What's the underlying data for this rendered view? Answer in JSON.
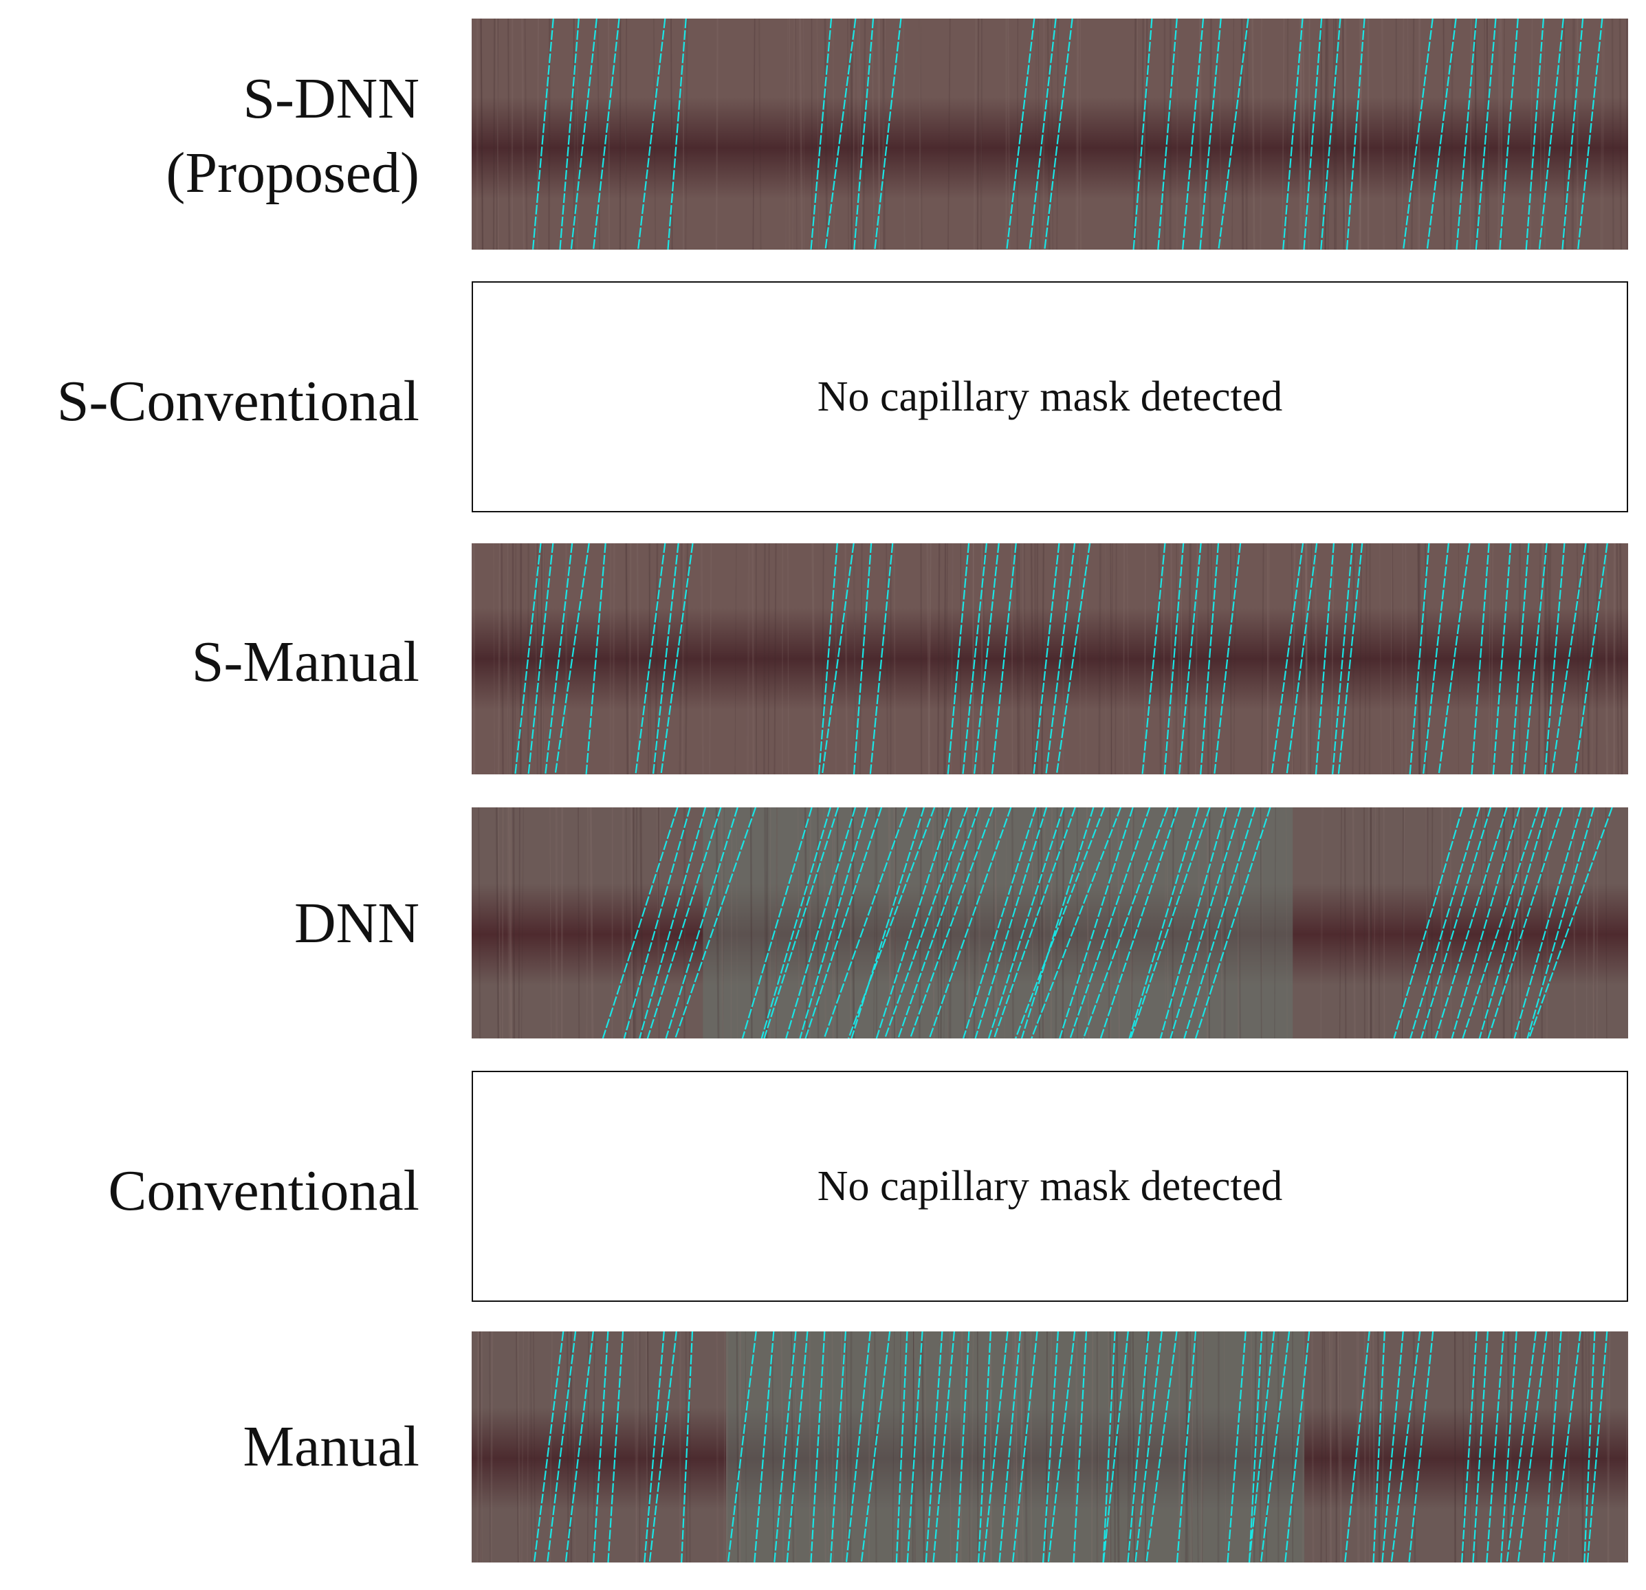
{
  "figure": {
    "line_color": "#19e6e6",
    "rows": [
      {
        "id": "s-dnn",
        "label_lines": [
          "S-DNN",
          "(Proposed)"
        ],
        "type": "kymograph",
        "base": "#6f5754",
        "band": "#4b2a2e",
        "tint": "#6f5754",
        "line_count": 31,
        "empty_message": ""
      },
      {
        "id": "s-conventional",
        "label_lines": [
          "S-Conventional"
        ],
        "type": "empty",
        "empty_message": "No capillary mask detected"
      },
      {
        "id": "s-manual",
        "label_lines": [
          "S-Manual"
        ],
        "type": "kymograph",
        "base": "#6f5754",
        "band": "#4b2a2e",
        "tint": "#6f5754",
        "line_count": 39,
        "empty_message": ""
      },
      {
        "id": "dnn",
        "label_lines": [
          "DNN"
        ],
        "type": "kymograph",
        "base": "#6c5a57",
        "band": "#4e2a2e",
        "tint": "#68736c",
        "line_count": 48,
        "empty_message": ""
      },
      {
        "id": "conventional",
        "label_lines": [
          "Conventional"
        ],
        "type": "empty",
        "empty_message": "No capillary mask detected"
      },
      {
        "id": "manual",
        "label_lines": [
          "Manual"
        ],
        "type": "kymograph",
        "base": "#6b5956",
        "band": "#4c2b2f",
        "tint": "#66716a",
        "line_count": 54,
        "empty_message": ""
      }
    ]
  }
}
